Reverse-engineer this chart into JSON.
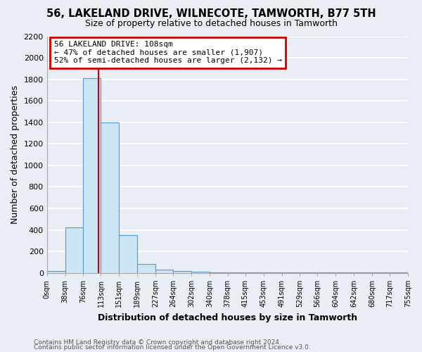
{
  "title": "56, LAKELAND DRIVE, WILNECOTE, TAMWORTH, B77 5TH",
  "subtitle": "Size of property relative to detached houses in Tamworth",
  "xlabel": "Distribution of detached houses by size in Tamworth",
  "ylabel": "Number of detached properties",
  "bin_edges": [
    0,
    38,
    76,
    113,
    151,
    189,
    227,
    264,
    302,
    340,
    378,
    415,
    453,
    491,
    529,
    566,
    604,
    642,
    680,
    717,
    755
  ],
  "bin_labels": [
    "0sqm",
    "38sqm",
    "76sqm",
    "113sqm",
    "151sqm",
    "189sqm",
    "227sqm",
    "264sqm",
    "302sqm",
    "340sqm",
    "378sqm",
    "415sqm",
    "453sqm",
    "491sqm",
    "529sqm",
    "566sqm",
    "604sqm",
    "642sqm",
    "680sqm",
    "717sqm",
    "755sqm"
  ],
  "bar_heights": [
    20,
    425,
    1810,
    1400,
    350,
    80,
    30,
    15,
    10,
    5,
    3,
    2,
    2,
    2,
    2,
    1,
    1,
    1,
    1,
    1
  ],
  "bar_color": "#cce5f5",
  "bar_edgecolor": "#5599cc",
  "vline_x": 108,
  "vline_color": "#cc0000",
  "ylim": [
    0,
    2200
  ],
  "yticks": [
    0,
    200,
    400,
    600,
    800,
    1000,
    1200,
    1400,
    1600,
    1800,
    2000,
    2200
  ],
  "annotation_line1": "56 LAKELAND DRIVE: 108sqm",
  "annotation_line2": "← 47% of detached houses are smaller (1,907)",
  "annotation_line3": "52% of semi-detached houses are larger (2,132) →",
  "annotation_box_color": "white",
  "annotation_box_edgecolor": "#cc0000",
  "footer_line1": "Contains HM Land Registry data © Crown copyright and database right 2024.",
  "footer_line2": "Contains public sector information licensed under the Open Government Licence v3.0.",
  "background_color": "#e8eef4",
  "grid_color": "white",
  "title_fontsize": 10.5,
  "subtitle_fontsize": 9,
  "axis_label_fontsize": 9
}
